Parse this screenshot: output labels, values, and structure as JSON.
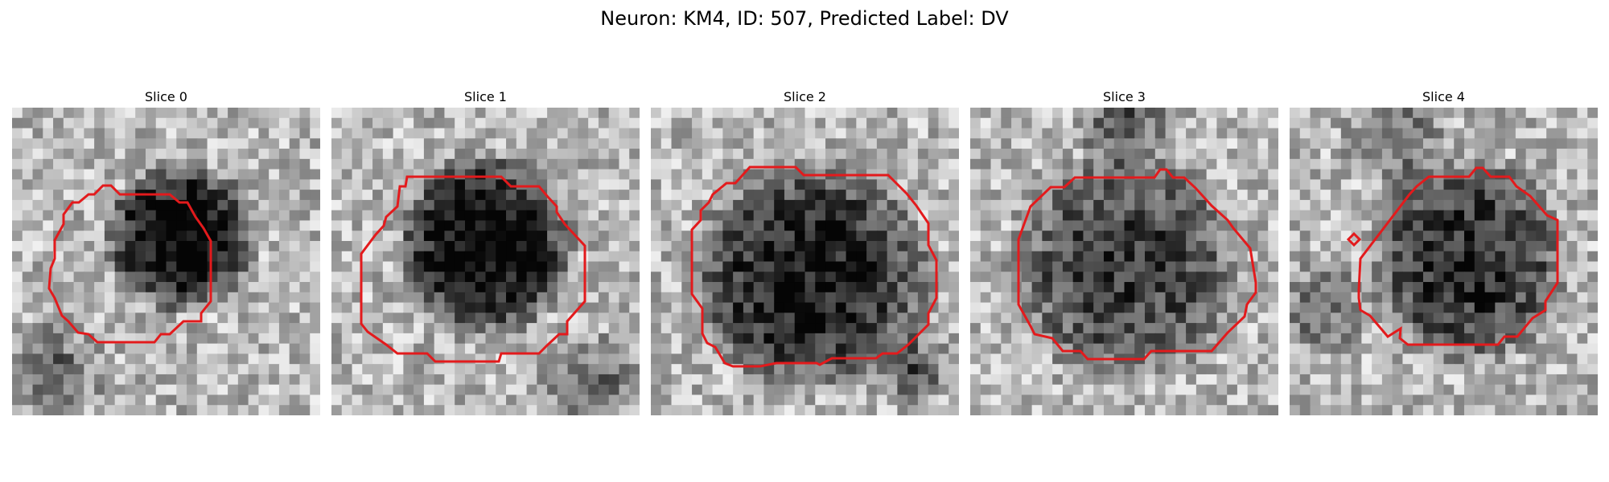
{
  "figure": {
    "title": "Neuron: KM4, ID: 507, Predicted Label: DV"
  },
  "colors": {
    "contour": "#e31a1c",
    "background": "#ffffff"
  },
  "panels": [
    {
      "title": "Slice 0"
    },
    {
      "title": "Slice 1"
    },
    {
      "title": "Slice 2"
    },
    {
      "title": "Slice 3"
    },
    {
      "title": "Slice 4"
    }
  ]
}
